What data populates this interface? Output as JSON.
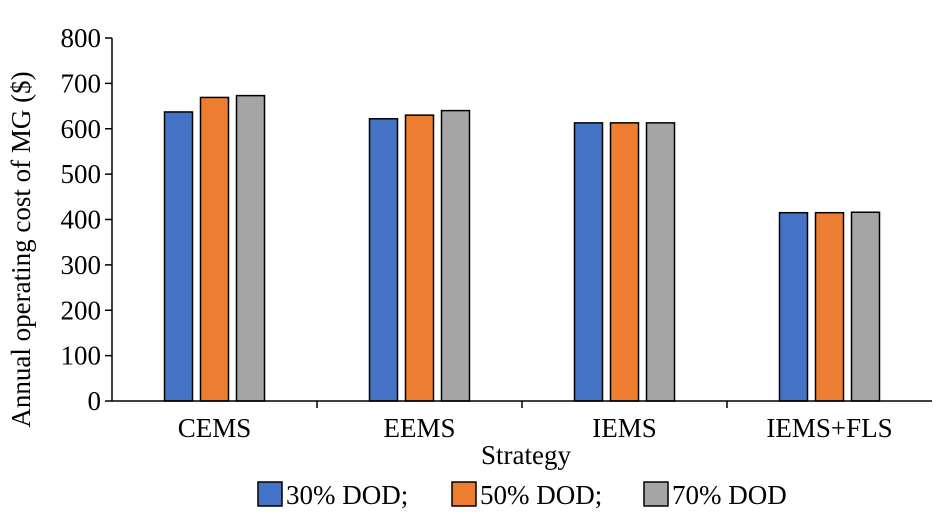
{
  "chart_data": {
    "type": "bar",
    "title": "",
    "xlabel": "Strategy",
    "ylabel": "Annual operating cost of MG ($)",
    "ylim": [
      0,
      800
    ],
    "yticks": [
      0,
      100,
      200,
      300,
      400,
      500,
      600,
      700,
      800
    ],
    "categories": [
      "CEMS",
      "EEMS",
      "IEMS",
      "IEMS+FLS"
    ],
    "series": [
      {
        "name": "30% DOD;",
        "color": "#4472c4",
        "values": [
          637,
          622,
          613,
          415
        ]
      },
      {
        "name": "50% DOD;",
        "color": "#ed7d31",
        "values": [
          669,
          630,
          613,
          415
        ]
      },
      {
        "name": "70% DOD",
        "color": "#a5a5a5",
        "values": [
          673,
          640,
          613,
          416
        ]
      }
    ],
    "grid": false,
    "legend": "bottom"
  }
}
